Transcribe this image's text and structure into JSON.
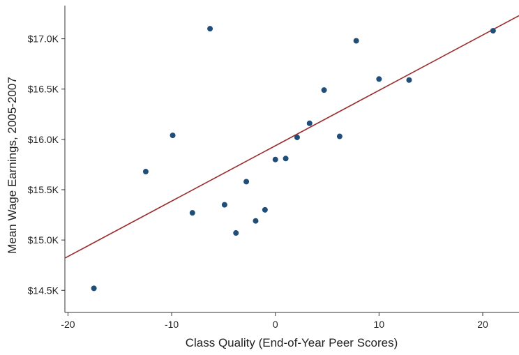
{
  "chart_data": {
    "type": "scatter",
    "title": "",
    "xlabel": "Class Quality (End-of-Year Peer Scores)",
    "ylabel": "Mean Wage Earnings, 2005-2007",
    "xlim": [
      -20.3,
      23.5
    ],
    "ylim": [
      14.28,
      17.33
    ],
    "x_ticks": [
      -20,
      -10,
      0,
      10,
      20
    ],
    "x_tick_labels": [
      "-20",
      "-10",
      "0",
      "10",
      "20"
    ],
    "y_ticks": [
      14.5,
      15.0,
      15.5,
      16.0,
      16.5,
      17.0
    ],
    "y_tick_labels": [
      "$14.5K",
      "$15.0K",
      "$15.5K",
      "$16.0K",
      "$16.5K",
      "$17.0K"
    ],
    "grid": false,
    "legend": "none",
    "points": [
      {
        "x": -17.5,
        "y": 14.52
      },
      {
        "x": -12.5,
        "y": 15.68
      },
      {
        "x": -9.9,
        "y": 16.04
      },
      {
        "x": -8.0,
        "y": 15.27
      },
      {
        "x": -6.3,
        "y": 17.1
      },
      {
        "x": -4.9,
        "y": 15.35
      },
      {
        "x": -3.8,
        "y": 15.07
      },
      {
        "x": -2.8,
        "y": 15.58
      },
      {
        "x": -1.9,
        "y": 15.19
      },
      {
        "x": -1.0,
        "y": 15.3
      },
      {
        "x": 0.0,
        "y": 15.8
      },
      {
        "x": 1.0,
        "y": 15.81
      },
      {
        "x": 2.1,
        "y": 16.02
      },
      {
        "x": 3.3,
        "y": 16.16
      },
      {
        "x": 4.7,
        "y": 16.49
      },
      {
        "x": 6.2,
        "y": 16.03
      },
      {
        "x": 7.8,
        "y": 16.98
      },
      {
        "x": 10.0,
        "y": 16.6
      },
      {
        "x": 12.9,
        "y": 16.59
      },
      {
        "x": 21.0,
        "y": 17.08
      }
    ],
    "fit_line": {
      "x": [
        -20.3,
        23.5
      ],
      "y": [
        14.82,
        17.23
      ]
    },
    "colors": {
      "points": "#1f4e79",
      "fit_line": "#9b2c2c",
      "axis": "#333333"
    }
  }
}
